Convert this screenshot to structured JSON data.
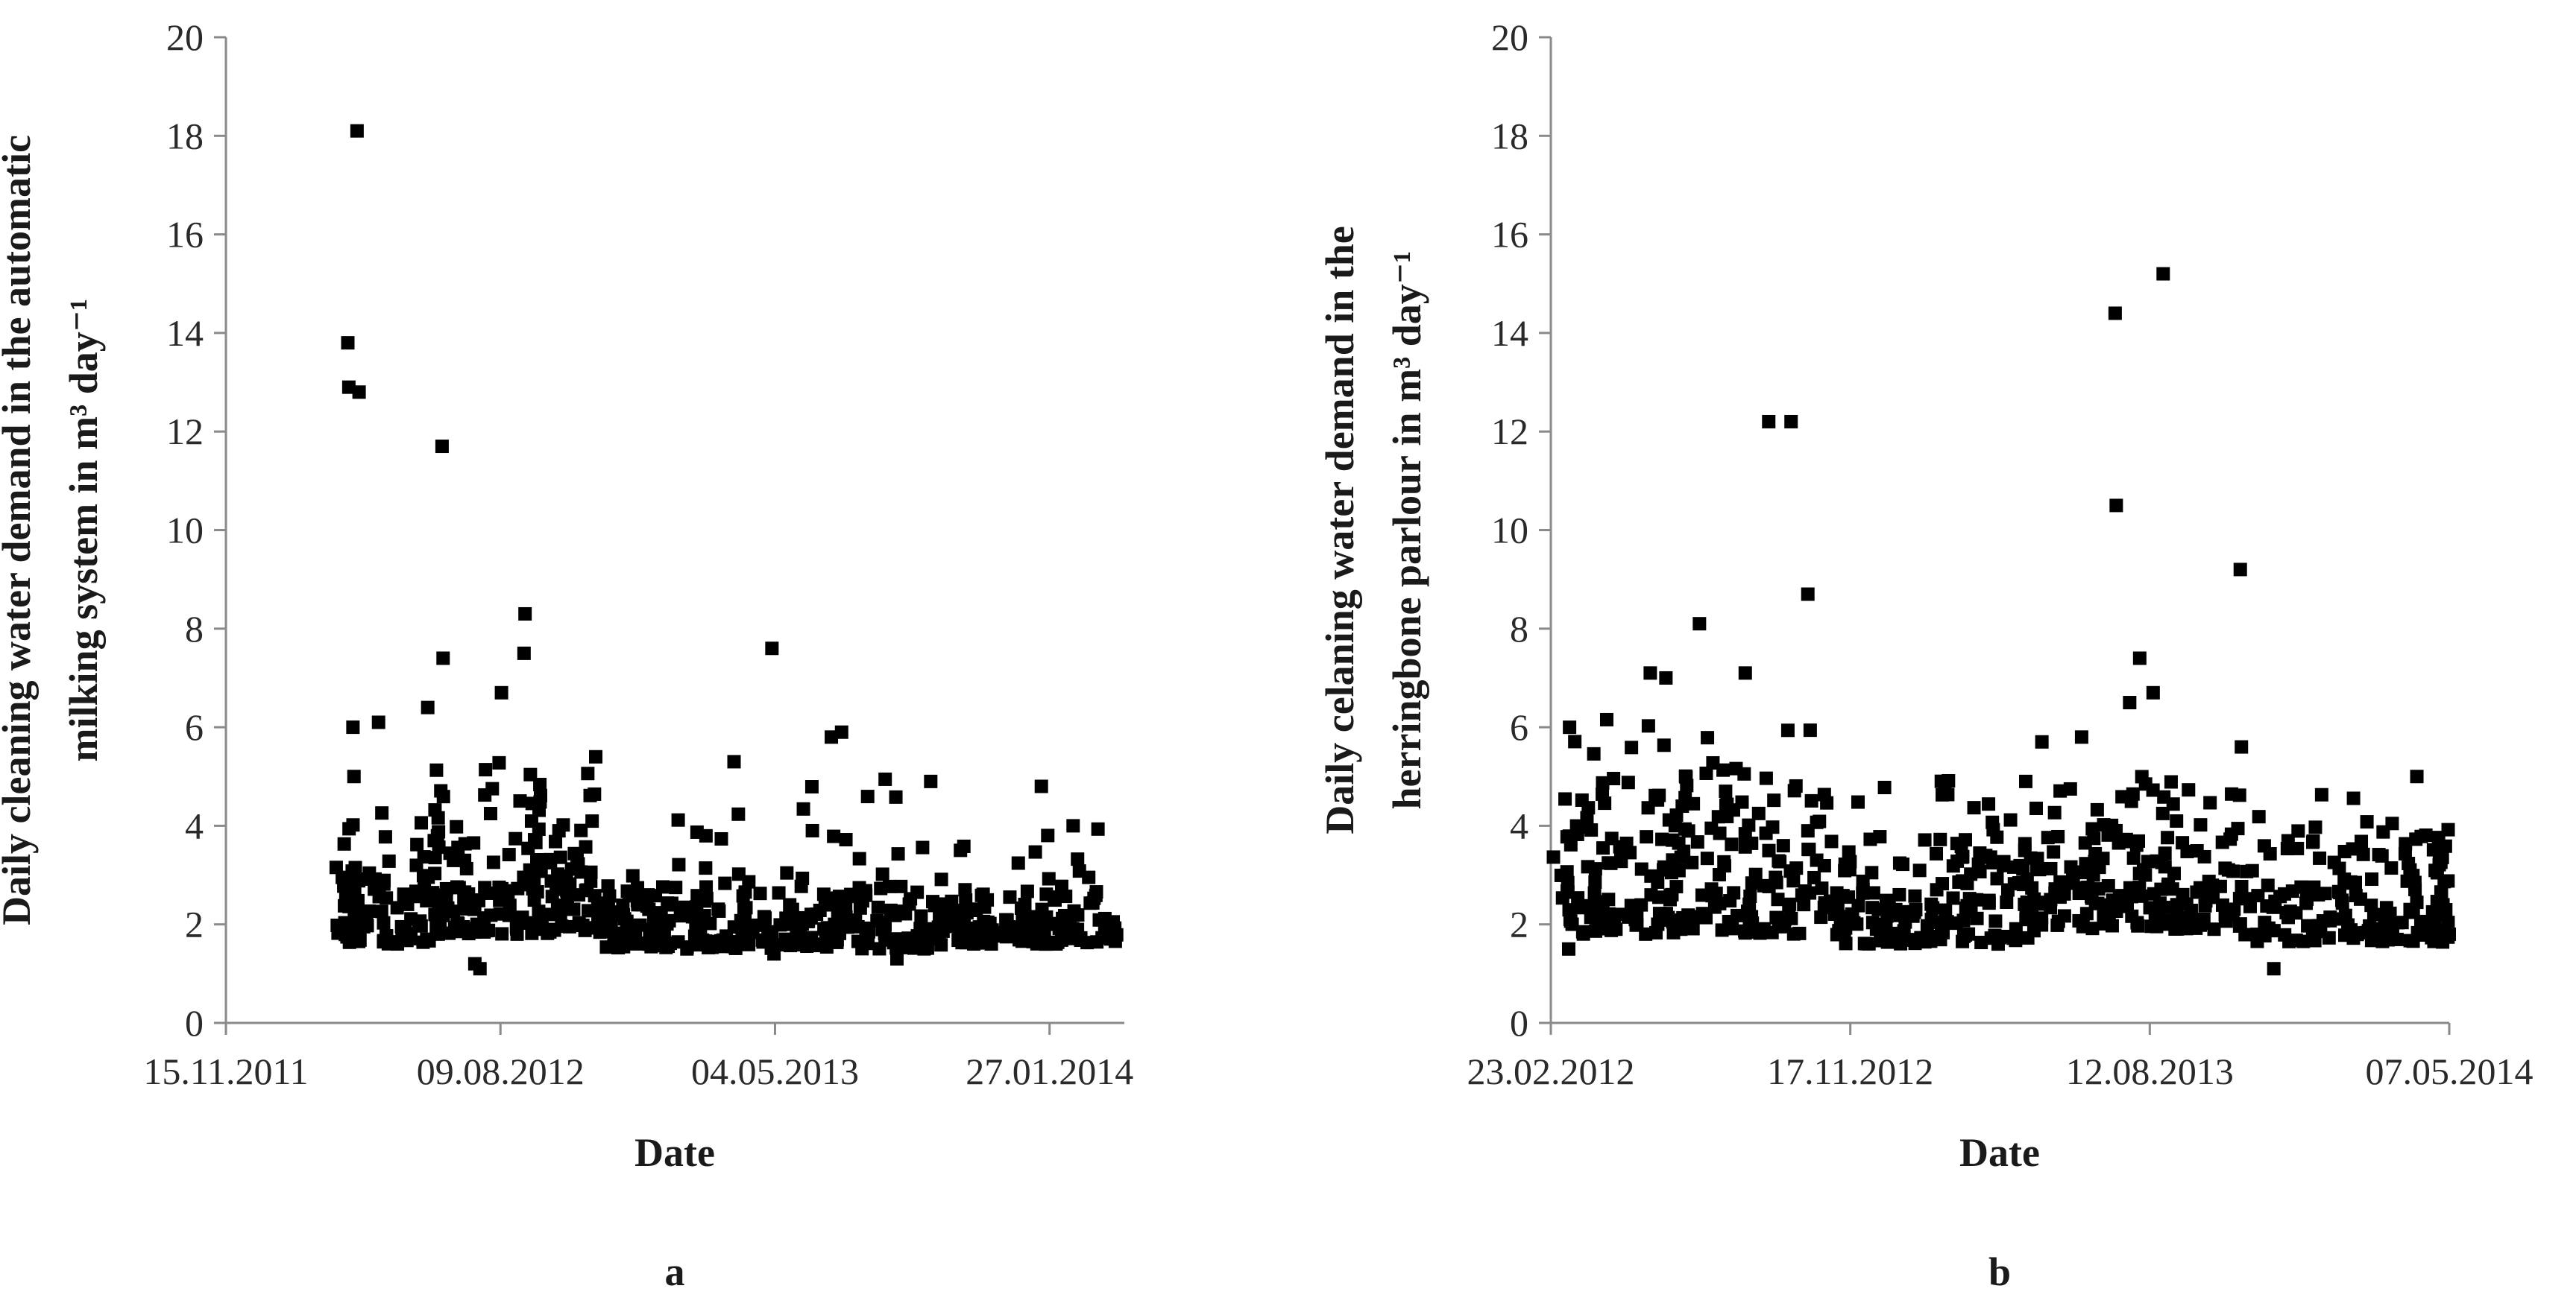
{
  "chart_data": [
    {
      "type": "scatter",
      "panel_label": "a",
      "xlabel": "Date",
      "ylabel_lines": [
        "Daily cleaning water demand in the automatic",
        "milking system in m³ day⁻¹"
      ],
      "ylim": [
        0,
        20
      ],
      "yticks": [
        0,
        2,
        4,
        6,
        8,
        10,
        12,
        14,
        16,
        18,
        20
      ],
      "xlim": [
        "2011-11-15",
        "2014-04-10"
      ],
      "xticks": [
        "2011-11-15",
        "2012-08-09",
        "2013-05-04",
        "2014-01-27"
      ],
      "xtick_labels": [
        "15.11.2011",
        "09.08.2012",
        "04.05.2013",
        "27.01.2014"
      ],
      "grid": false,
      "marker": "square",
      "series": [
        {
          "outliers": [
            {
              "x": "2012-03-13",
              "y": 13.8
            },
            {
              "x": "2012-03-14",
              "y": 12.9
            },
            {
              "x": "2012-03-22",
              "y": 18.1
            },
            {
              "x": "2012-03-24",
              "y": 12.8
            },
            {
              "x": "2012-06-13",
              "y": 11.7
            },
            {
              "x": "2012-09-02",
              "y": 8.3
            },
            {
              "x": "2013-05-01",
              "y": 7.6
            },
            {
              "x": "2012-06-14",
              "y": 7.4
            },
            {
              "x": "2012-09-01",
              "y": 7.5
            },
            {
              "x": "2012-08-10",
              "y": 6.7
            },
            {
              "x": "2012-05-30",
              "y": 6.4
            },
            {
              "x": "2012-04-12",
              "y": 6.1
            },
            {
              "x": "2012-03-18",
              "y": 6.0
            },
            {
              "x": "2012-03-19",
              "y": 5.0
            },
            {
              "x": "2013-07-08",
              "y": 5.9
            },
            {
              "x": "2013-06-28",
              "y": 5.8
            },
            {
              "x": "2013-03-25",
              "y": 5.3
            },
            {
              "x": "2012-11-10",
              "y": 5.4
            },
            {
              "x": "2013-10-03",
              "y": 4.9
            },
            {
              "x": "2014-01-19",
              "y": 4.8
            },
            {
              "x": "2014-02-19",
              "y": 4.0
            }
          ],
          "clusters": [
            {
              "from": "2012-03-01",
              "to": "2012-06-01",
              "low": 1.6,
              "high": 3.0,
              "count": 90
            },
            {
              "from": "2012-03-01",
              "to": "2012-06-01",
              "low": 3.0,
              "high": 4.5,
              "count": 14
            },
            {
              "from": "2012-06-01",
              "to": "2012-11-20",
              "low": 1.8,
              "high": 3.8,
              "count": 150
            },
            {
              "from": "2012-06-01",
              "to": "2012-11-20",
              "low": 3.8,
              "high": 5.3,
              "count": 28
            },
            {
              "from": "2012-11-20",
              "to": "2013-05-20",
              "low": 1.5,
              "high": 2.8,
              "count": 140
            },
            {
              "from": "2012-11-20",
              "to": "2013-05-20",
              "low": 2.8,
              "high": 4.3,
              "count": 12
            },
            {
              "from": "2013-05-20",
              "to": "2013-10-15",
              "low": 1.5,
              "high": 2.8,
              "count": 110
            },
            {
              "from": "2013-05-20",
              "to": "2013-10-15",
              "low": 2.8,
              "high": 5.0,
              "count": 14
            },
            {
              "from": "2013-10-15",
              "to": "2014-04-05",
              "low": 1.6,
              "high": 2.7,
              "count": 130
            },
            {
              "from": "2013-10-15",
              "to": "2014-04-05",
              "low": 2.7,
              "high": 4.2,
              "count": 12
            }
          ],
          "low_points": [
            {
              "x": "2012-07-15",
              "y": 1.2
            },
            {
              "x": "2012-07-20",
              "y": 1.1
            },
            {
              "x": "2013-05-03",
              "y": 1.4
            },
            {
              "x": "2013-08-31",
              "y": 1.3
            }
          ]
        }
      ]
    },
    {
      "type": "scatter",
      "panel_label": "b",
      "xlabel": "Date",
      "ylabel_lines": [
        "Daily celaning water demand in the",
        "herringbone  parlour  in m³ day⁻¹"
      ],
      "ylim": [
        0,
        20
      ],
      "yticks": [
        0,
        2,
        4,
        6,
        8,
        10,
        12,
        14,
        16,
        18,
        20
      ],
      "xlim": [
        "2012-02-23",
        "2014-05-07"
      ],
      "xticks": [
        "2012-02-23",
        "2012-11-17",
        "2013-08-12",
        "2014-05-07"
      ],
      "xtick_labels": [
        "23.02.2012",
        "17.11.2012",
        "12.08.2013",
        "07.05.2014"
      ],
      "grid": false,
      "marker": "square",
      "series": [
        {
          "outliers": [
            {
              "x": "2012-09-05",
              "y": 12.2
            },
            {
              "x": "2012-09-25",
              "y": 12.2
            },
            {
              "x": "2012-10-10",
              "y": 8.7
            },
            {
              "x": "2012-07-05",
              "y": 8.1
            },
            {
              "x": "2012-05-22",
              "y": 7.1
            },
            {
              "x": "2012-06-05",
              "y": 7.0
            },
            {
              "x": "2012-08-15",
              "y": 7.1
            },
            {
              "x": "2013-07-12",
              "y": 14.4
            },
            {
              "x": "2013-07-13",
              "y": 10.5
            },
            {
              "x": "2013-08-24",
              "y": 15.2
            },
            {
              "x": "2013-11-01",
              "y": 9.2
            },
            {
              "x": "2013-08-03",
              "y": 7.4
            },
            {
              "x": "2013-07-25",
              "y": 6.5
            },
            {
              "x": "2013-08-15",
              "y": 6.7
            },
            {
              "x": "2013-06-12",
              "y": 5.8
            },
            {
              "x": "2013-11-02",
              "y": 5.6
            },
            {
              "x": "2014-04-08",
              "y": 5.0
            }
          ],
          "clusters": [
            {
              "from": "2012-02-23",
              "to": "2012-10-30",
              "low": 1.8,
              "high": 4.5,
              "count": 200
            },
            {
              "from": "2012-02-23",
              "to": "2012-10-30",
              "low": 4.5,
              "high": 6.3,
              "count": 35
            },
            {
              "from": "2012-10-30",
              "to": "2013-05-01",
              "low": 1.6,
              "high": 3.6,
              "count": 150
            },
            {
              "from": "2012-10-30",
              "to": "2013-05-01",
              "low": 3.6,
              "high": 5.2,
              "count": 22
            },
            {
              "from": "2013-05-01",
              "to": "2013-10-20",
              "low": 1.9,
              "high": 4.0,
              "count": 150
            },
            {
              "from": "2013-05-01",
              "to": "2013-10-20",
              "low": 4.0,
              "high": 5.8,
              "count": 22
            },
            {
              "from": "2013-10-20",
              "to": "2014-05-07",
              "low": 1.6,
              "high": 3.8,
              "count": 160
            },
            {
              "from": "2013-10-20",
              "to": "2014-05-07",
              "low": 3.8,
              "high": 4.9,
              "count": 14
            }
          ],
          "low_points": [
            {
              "x": "2012-03-10",
              "y": 1.5
            },
            {
              "x": "2013-12-01",
              "y": 1.1
            },
            {
              "x": "2014-05-07",
              "y": 1.8
            }
          ]
        }
      ]
    }
  ]
}
